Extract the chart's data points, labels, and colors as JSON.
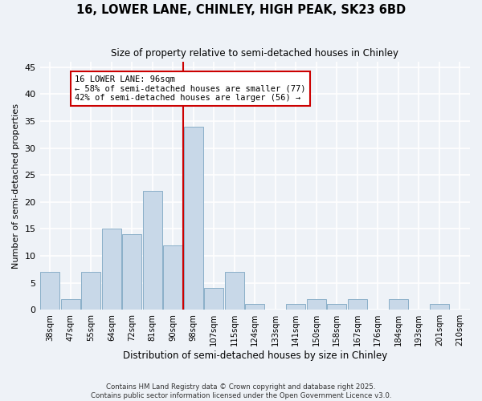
{
  "title1": "16, LOWER LANE, CHINLEY, HIGH PEAK, SK23 6BD",
  "title2": "Size of property relative to semi-detached houses in Chinley",
  "xlabel": "Distribution of semi-detached houses by size in Chinley",
  "ylabel": "Number of semi-detached properties",
  "annotation_title": "16 LOWER LANE: 96sqm",
  "annotation_line1": "← 58% of semi-detached houses are smaller (77)",
  "annotation_line2": "42% of semi-detached houses are larger (56) →",
  "footer1": "Contains HM Land Registry data © Crown copyright and database right 2025.",
  "footer2": "Contains public sector information licensed under the Open Government Licence v3.0.",
  "bin_labels": [
    "38sqm",
    "47sqm",
    "55sqm",
    "64sqm",
    "72sqm",
    "81sqm",
    "90sqm",
    "98sqm",
    "107sqm",
    "115sqm",
    "124sqm",
    "133sqm",
    "141sqm",
    "150sqm",
    "158sqm",
    "167sqm",
    "176sqm",
    "184sqm",
    "193sqm",
    "201sqm",
    "210sqm"
  ],
  "bin_values": [
    7,
    2,
    7,
    15,
    14,
    22,
    12,
    34,
    4,
    7,
    1,
    0,
    1,
    2,
    1,
    2,
    0,
    2,
    0,
    1,
    0
  ],
  "bar_color": "#c8d8e8",
  "bar_edge_color": "#8aafc8",
  "vline_color": "#cc0000",
  "bg_color": "#eef2f7",
  "grid_color": "#ffffff",
  "ylim": [
    0,
    46
  ],
  "yticks": [
    0,
    5,
    10,
    15,
    20,
    25,
    30,
    35,
    40,
    45
  ]
}
